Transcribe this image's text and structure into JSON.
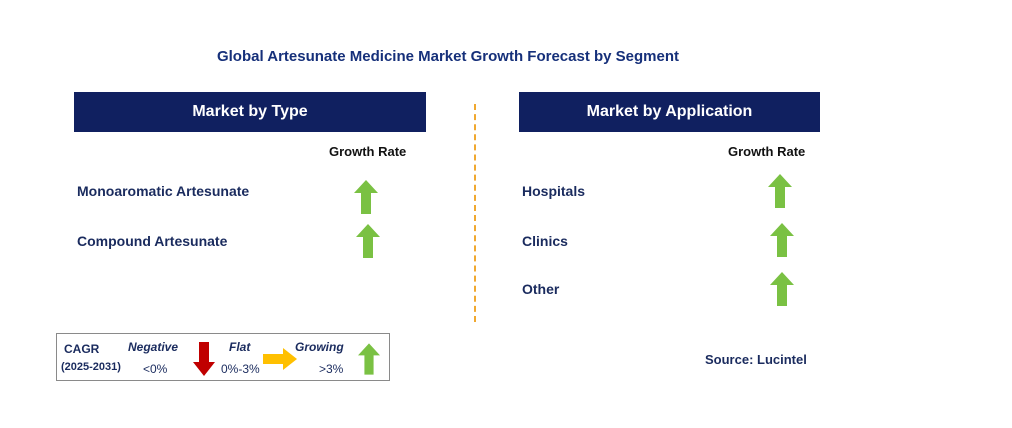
{
  "title": "Global Artesunate Medicine Market Growth Forecast by Segment",
  "left_panel": {
    "header": "Market by Type",
    "growth_rate_label": "Growth Rate",
    "rows": [
      {
        "label": "Monoaromatic Artesunate",
        "trend": "growing"
      },
      {
        "label": "Compound Artesunate",
        "trend": "growing"
      }
    ]
  },
  "right_panel": {
    "header": "Market by Application",
    "growth_rate_label": "Growth Rate",
    "rows": [
      {
        "label": "Hospitals",
        "trend": "growing"
      },
      {
        "label": "Clinics",
        "trend": "growing"
      },
      {
        "label": "Other",
        "trend": "growing"
      }
    ]
  },
  "legend": {
    "cagr_label": "CAGR",
    "years": "(2025-2031)",
    "negative": {
      "label": "Negative",
      "range": "<0%",
      "icon": "down-arrow-icon",
      "color": "#c00000"
    },
    "flat": {
      "label": "Flat",
      "range": "0%-3%",
      "icon": "right-arrow-icon",
      "color": "#ffc000"
    },
    "growing": {
      "label": "Growing",
      "range": ">3%",
      "icon": "up-arrow-icon",
      "color": "#7ac143"
    }
  },
  "source": "Source: Lucintel",
  "colors": {
    "header_bg": "#102060",
    "divider": "#f0a830",
    "up_arrow": "#7ac143"
  }
}
